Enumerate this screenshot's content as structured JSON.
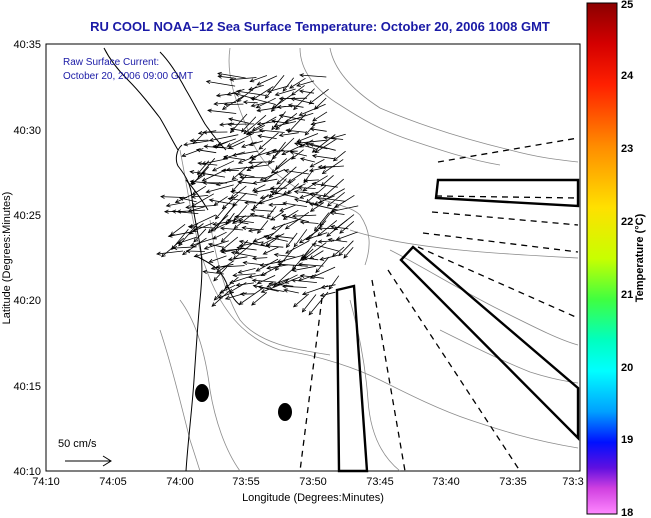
{
  "title": "RU COOL  NOAA–12  Sea Surface Temperature:  October 20, 2006 1008 GMT",
  "current_note": {
    "line1": "Raw Surface Current:",
    "line2": "October 20, 2006 09:00 GMT"
  },
  "axes": {
    "xlabel": "Longitude (Degrees:Minutes)",
    "ylabel": "Latitude (Degrees:Minutes)",
    "x_ticks": [
      "74:10",
      "74:05",
      "74:00",
      "73:55",
      "73:50",
      "73:45",
      "73:40",
      "73:35",
      "73:3"
    ],
    "y_ticks": [
      "40:35",
      "40:30",
      "40:25",
      "40:20",
      "40:15",
      "40:10"
    ]
  },
  "scale_vector": {
    "label": "50 cm/s"
  },
  "colorbar": {
    "label": "Temperature (°C)",
    "ticks": [
      "25",
      "24",
      "23",
      "22",
      "21",
      "20",
      "19",
      "18"
    ],
    "colors": [
      "#8b0000",
      "#ff0000",
      "#ff8c00",
      "#ffff00",
      "#00ff80",
      "#00ffff",
      "#0000ff",
      "#ff66ff"
    ]
  }
}
